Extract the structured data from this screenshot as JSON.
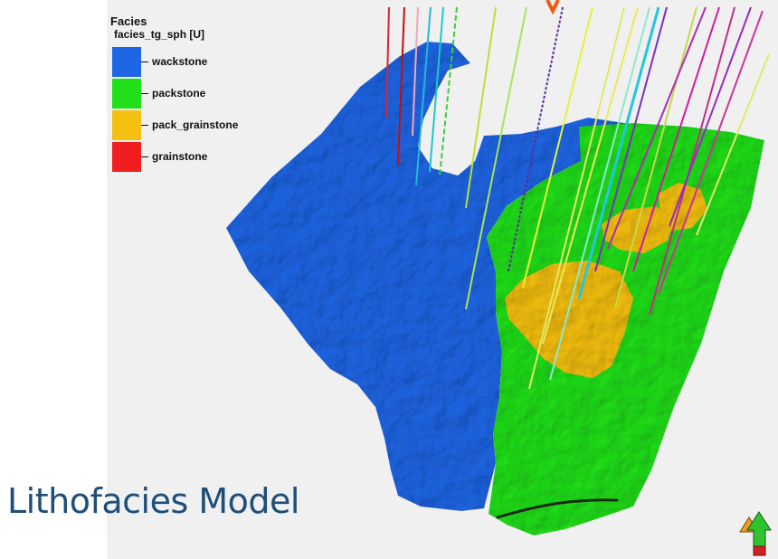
{
  "legend": {
    "title": "Facies",
    "property": "facies_tg_sph [U]",
    "entries": [
      {
        "label": "wackstone",
        "color": "#1e66e6"
      },
      {
        "label": "packstone",
        "color": "#21e019"
      },
      {
        "label": "pack_grainstone",
        "color": "#f5c012"
      },
      {
        "label": "grainstone",
        "color": "#f01e1e"
      }
    ]
  },
  "model_title": "Lithofacies Model",
  "icons": {
    "north_arrow": "up-arrow-icon",
    "well_marker": "down-arrow-icon"
  }
}
